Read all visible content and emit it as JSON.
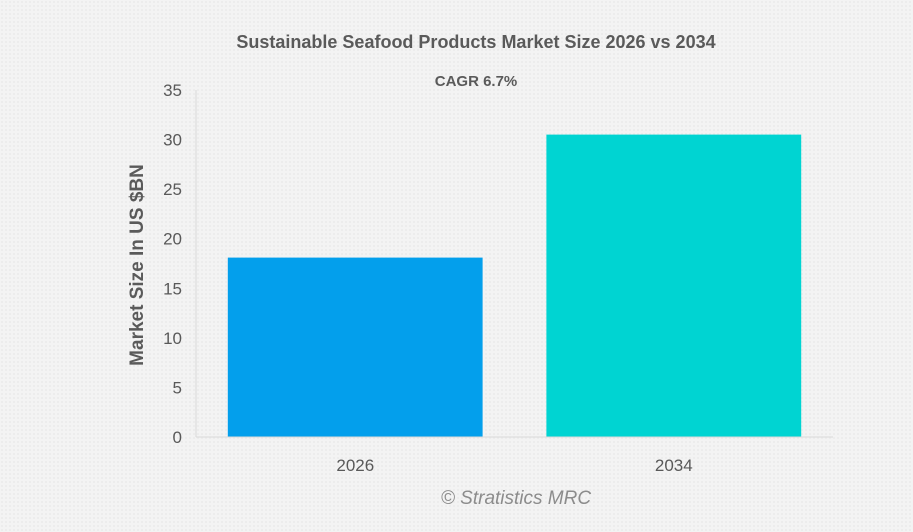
{
  "chart_data": {
    "type": "bar",
    "title": "Sustainable Seafood Products Market Size 2026 vs 2034",
    "subtitle": "CAGR 6.7%",
    "xlabel": "",
    "ylabel": "Market Size In US $BN",
    "categories": [
      "2026",
      "2034"
    ],
    "values": [
      18.1,
      30.5
    ],
    "bar_colors": [
      "#039fec",
      "#00d4d2"
    ],
    "ylim": [
      0,
      35
    ],
    "yticks": [
      0,
      5,
      10,
      15,
      20,
      25,
      30,
      35
    ],
    "grid": false,
    "legend": "none",
    "watermark": "© Stratistics MRC"
  }
}
